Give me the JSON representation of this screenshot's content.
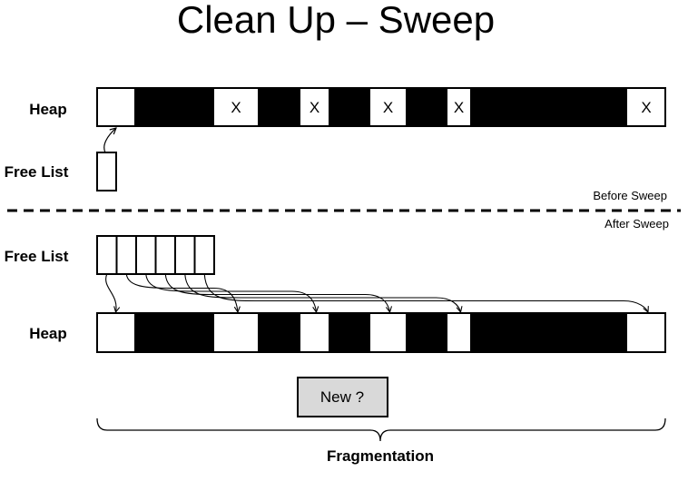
{
  "title": "Clean Up – Sweep",
  "before": {
    "heap_label": "Heap",
    "free_list_label": "Free List",
    "caption": "Before Sweep"
  },
  "after": {
    "heap_label": "Heap",
    "free_list_label": "Free List",
    "caption": "After Sweep"
  },
  "new_button": "New ?",
  "brace_label": "Fragmentation",
  "heap_blocks": [
    {
      "type": "free",
      "mark": ""
    },
    {
      "type": "live",
      "mark": ""
    },
    {
      "type": "garbage",
      "mark": "X"
    },
    {
      "type": "live",
      "mark": ""
    },
    {
      "type": "garbage",
      "mark": "X"
    },
    {
      "type": "live",
      "mark": ""
    },
    {
      "type": "garbage",
      "mark": "X"
    },
    {
      "type": "live",
      "mark": ""
    },
    {
      "type": "garbage",
      "mark": "X"
    },
    {
      "type": "live",
      "mark": ""
    },
    {
      "type": "garbage",
      "mark": "X"
    }
  ],
  "free_list_after_count": 6,
  "colors": {
    "live": "#000000",
    "free": "#ffffff",
    "new_fill": "#d9d9d9"
  }
}
